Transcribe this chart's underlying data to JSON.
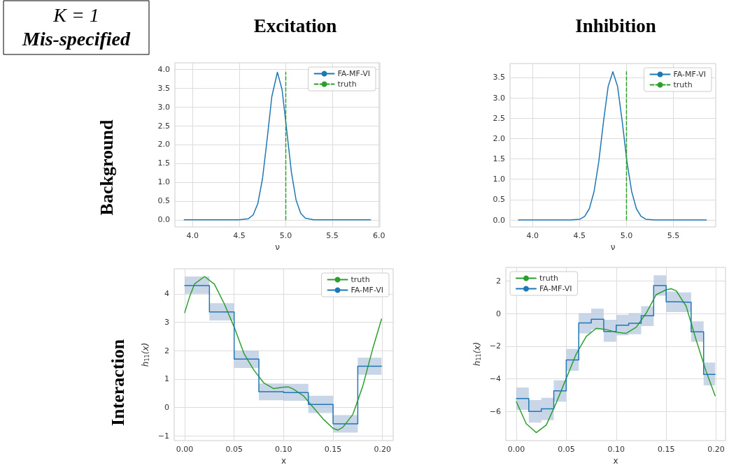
{
  "chart_data": [
    {
      "type": "line",
      "title": "Excitation",
      "xlabel": "ν",
      "annotations": [
        "K = 1",
        "Mis-specified",
        "Background"
      ],
      "xlim": [
        3.81,
        6.01
      ],
      "ylim": [
        -0.19,
        4.17
      ],
      "xticks": [
        {
          "value": 4,
          "label": "4.0"
        },
        {
          "value": 4.5,
          "label": "4.5"
        },
        {
          "value": 5,
          "label": "5.0"
        },
        {
          "value": 5.5,
          "label": "5.5"
        },
        {
          "value": 6,
          "label": "6.0"
        }
      ],
      "yticks": [
        {
          "value": 0,
          "label": "0.0"
        },
        {
          "value": 0.5,
          "label": "0.5"
        },
        {
          "value": 1,
          "label": "1.0"
        },
        {
          "value": 1.5,
          "label": "1.5"
        },
        {
          "value": 2,
          "label": "2.0"
        },
        {
          "value": 2.5,
          "label": "2.5"
        },
        {
          "value": 3,
          "label": "3.0"
        },
        {
          "value": 3.5,
          "label": "3.5"
        },
        {
          "value": 4,
          "label": "4.0"
        }
      ],
      "grid": true,
      "legend": "top right",
      "series": [
        {
          "name": "FA-MF-VI",
          "color": "#1f77b4",
          "line_style": "solid",
          "x": [
            3.91,
            4.5,
            4.6,
            4.65,
            4.7,
            4.75,
            4.8,
            4.85,
            4.91,
            4.96,
            5.01,
            5.06,
            5.11,
            5.16,
            5.21,
            5.3,
            5.91
          ],
          "values": [
            0,
            0,
            0.03,
            0.13,
            0.43,
            1.09,
            2.14,
            3.27,
            3.92,
            3.46,
            2.38,
            1.27,
            0.53,
            0.17,
            0.04,
            0,
            0
          ]
        },
        {
          "name": "truth",
          "color": "#2ca02c",
          "line_style": "dashed",
          "x": [
            5,
            5
          ],
          "values": [
            0,
            3.92
          ]
        }
      ]
    },
    {
      "type": "line",
      "title": "Inhibition",
      "xlabel": "ν",
      "xlim": [
        3.76,
        5.95
      ],
      "ylim": [
        -0.17,
        3.84
      ],
      "xticks": [
        {
          "value": 4,
          "label": "4.0"
        },
        {
          "value": 4.5,
          "label": "4.5"
        },
        {
          "value": 5,
          "label": "5.0"
        },
        {
          "value": 5.5,
          "label": "5.5"
        }
      ],
      "yticks": [
        {
          "value": 0,
          "label": "0.0"
        },
        {
          "value": 0.5,
          "label": "0.5"
        },
        {
          "value": 1,
          "label": "1.0"
        },
        {
          "value": 1.5,
          "label": "1.5"
        },
        {
          "value": 2,
          "label": "2.0"
        },
        {
          "value": 2.5,
          "label": "2.5"
        },
        {
          "value": 3,
          "label": "3.0"
        },
        {
          "value": 3.5,
          "label": "3.5"
        }
      ],
      "grid": true,
      "legend": "top right",
      "series": [
        {
          "name": "FA-MF-VI",
          "color": "#1f77b4",
          "line_style": "solid",
          "x": [
            3.85,
            4.4,
            4.505,
            4.555,
            4.605,
            4.655,
            4.705,
            4.755,
            4.805,
            4.855,
            4.905,
            4.955,
            5.005,
            5.055,
            5.105,
            5.155,
            5.205,
            5.3,
            5.85
          ],
          "values": [
            0,
            0,
            0.02,
            0.09,
            0.28,
            0.7,
            1.43,
            2.41,
            3.28,
            3.64,
            3.28,
            2.41,
            1.43,
            0.7,
            0.28,
            0.09,
            0.02,
            0,
            0
          ]
        },
        {
          "name": "truth",
          "color": "#2ca02c",
          "line_style": "dashed",
          "x": [
            5,
            5
          ],
          "values": [
            0,
            3.64
          ]
        }
      ]
    },
    {
      "type": "line",
      "xlabel": "x",
      "ylabel": "h$_{11}$(x)",
      "annotations": [
        "Interaction"
      ],
      "xlim": [
        -0.0106,
        0.2108
      ],
      "ylim": [
        -1.17,
        4.88
      ],
      "xticks": [
        {
          "value": 0,
          "label": "0.00"
        },
        {
          "value": 0.05,
          "label": "0.05"
        },
        {
          "value": 0.1,
          "label": "0.10"
        },
        {
          "value": 0.15,
          "label": "0.15"
        },
        {
          "value": 0.2,
          "label": "0.20"
        }
      ],
      "yticks": [
        {
          "value": -1,
          "label": "−1"
        },
        0,
        1,
        2,
        3,
        4
      ],
      "grid": true,
      "legend": "top right",
      "series": [
        {
          "name": "truth",
          "color": "#2ca02c",
          "line_style": "solid",
          "x": [
            0,
            0.005,
            0.01,
            0.02,
            0.03,
            0.04,
            0.05,
            0.06,
            0.07,
            0.08,
            0.09,
            0.1,
            0.105,
            0.11,
            0.12,
            0.13,
            0.14,
            0.15,
            0.155,
            0.16,
            0.17,
            0.18,
            0.19,
            0.199
          ],
          "values": [
            3.34,
            3.9,
            4.35,
            4.61,
            4.34,
            3.65,
            2.83,
            1.89,
            1.31,
            0.86,
            0.66,
            0.71,
            0.72,
            0.64,
            0.41,
            0,
            -0.41,
            -0.74,
            -0.8,
            -0.7,
            -0.25,
            0.74,
            2.05,
            3.11
          ]
        },
        {
          "name": "FA-MF-VI",
          "type": "step",
          "color": "#1f77b4",
          "line_style": "solid",
          "x": [
            0,
            0.025,
            0.05,
            0.075,
            0.1,
            0.125,
            0.15,
            0.175,
            0.199
          ],
          "values": [
            4.29,
            3.36,
            1.7,
            0.55,
            0.52,
            0.1,
            -0.58,
            1.45,
            1.45
          ],
          "lower": [
            4.0,
            3.06,
            1.39,
            0.25,
            0.23,
            -0.2,
            -0.89,
            1.15,
            1.15
          ],
          "upper": [
            4.61,
            3.67,
            2.0,
            0.84,
            0.83,
            0.41,
            -0.27,
            1.75,
            1.75
          ]
        }
      ]
    },
    {
      "type": "line",
      "xlabel": "x",
      "ylabel": "h$_{11}$(x)",
      "xlim": [
        -0.0105,
        0.2094
      ],
      "ylim": [
        -7.79,
        2.84
      ],
      "xticks": [
        {
          "value": 0,
          "label": "0.00"
        },
        {
          "value": 0.05,
          "label": "0.05"
        },
        {
          "value": 0.1,
          "label": "0.10"
        },
        {
          "value": 0.15,
          "label": "0.15"
        },
        {
          "value": 0.2,
          "label": "0.20"
        }
      ],
      "yticks": [
        {
          "value": -6,
          "label": "−6"
        },
        {
          "value": -4,
          "label": "−4"
        },
        {
          "value": -2,
          "label": "−2"
        },
        0,
        2
      ],
      "grid": true,
      "legend": "top left",
      "series": [
        {
          "name": "truth",
          "color": "#2ca02c",
          "line_style": "solid",
          "x": [
            0,
            0.01,
            0.02,
            0.03,
            0.04,
            0.05,
            0.06,
            0.07,
            0.08,
            0.09,
            0.1,
            0.11,
            0.12,
            0.13,
            0.14,
            0.15,
            0.155,
            0.16,
            0.17,
            0.18,
            0.19,
            0.199
          ],
          "values": [
            -5.4,
            -6.76,
            -7.3,
            -6.83,
            -5.47,
            -3.97,
            -2.47,
            -1.4,
            -0.9,
            -0.97,
            -1.14,
            -1.21,
            -0.83,
            0.03,
            1.17,
            1.47,
            1.53,
            1.41,
            0.46,
            -1.61,
            -3.54,
            -5.04
          ]
        },
        {
          "name": "FA-MF-VI",
          "type": "step",
          "color": "#1f77b4",
          "line_style": "solid",
          "x": [
            0,
            0.0125,
            0.025,
            0.0375,
            0.05,
            0.0625,
            0.075,
            0.0875,
            0.1,
            0.1125,
            0.125,
            0.1375,
            0.15,
            0.1625,
            0.175,
            0.1875,
            0.199
          ],
          "values": [
            -5.21,
            -6.0,
            -5.84,
            -4.74,
            -2.84,
            -0.57,
            -0.34,
            -1.09,
            -0.71,
            -0.59,
            -0.13,
            1.73,
            0.73,
            0.7,
            -1.11,
            -3.73,
            -3.73
          ],
          "lower": [
            -5.9,
            -6.69,
            -6.54,
            -5.4,
            -3.5,
            -1.21,
            -0.97,
            -1.73,
            -1.33,
            -1.26,
            -0.76,
            1.1,
            0.1,
            0.1,
            -1.73,
            -4.4,
            -4.4
          ],
          "upper": [
            -4.53,
            -5.3,
            -5.16,
            -4.09,
            -2.16,
            0.03,
            0.31,
            -0.37,
            -0.07,
            0.03,
            0.46,
            2.36,
            1.36,
            1.31,
            -0.47,
            -3.0,
            -3.0
          ]
        }
      ]
    }
  ]
}
